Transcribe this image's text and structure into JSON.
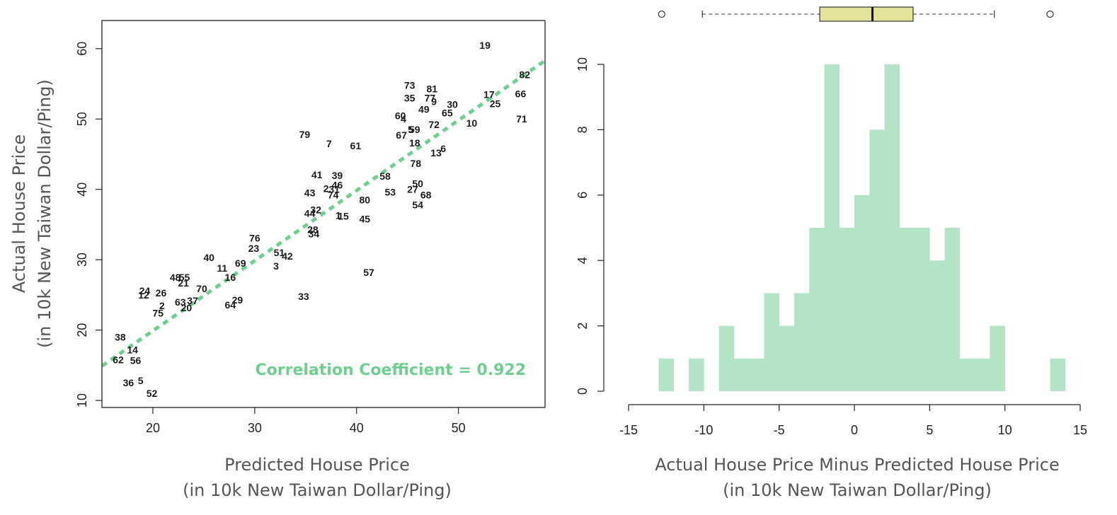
{
  "colors": {
    "fit_line": "#6fcf8f",
    "annotation": "#6fcf8f",
    "hist_fill": "#b3e4c6",
    "box_fill": "#e3e39a"
  },
  "chart_data": [
    {
      "type": "scatter",
      "title": "",
      "xlabel": [
        "Predicted House Price",
        "(in 10k New Taiwan Dollar/Ping)"
      ],
      "ylabel": [
        "Actual House Price",
        "(in 10k New Taiwan Dollar/Ping)"
      ],
      "xlim": [
        15,
        58.5
      ],
      "ylim": [
        9,
        64
      ],
      "x_ticks": [
        20,
        30,
        40,
        50
      ],
      "y_ticks": [
        10,
        20,
        30,
        40,
        50,
        60
      ],
      "grid": false,
      "fit_line": {
        "style": "dashed",
        "points": [
          [
            15,
            14.9
          ],
          [
            58.5,
            58.3
          ]
        ]
      },
      "annotation": "Correlation Coefficient = 0.922",
      "points": [
        {
          "label": "19",
          "x": 52.6,
          "y": 60.5
        },
        {
          "label": "82",
          "x": 56.5,
          "y": 56.3
        },
        {
          "label": "73",
          "x": 45.2,
          "y": 54.8
        },
        {
          "label": "81",
          "x": 47.4,
          "y": 54.3
        },
        {
          "label": "17",
          "x": 53.0,
          "y": 53.5
        },
        {
          "label": "66",
          "x": 56.1,
          "y": 53.6
        },
        {
          "label": "35",
          "x": 45.2,
          "y": 53.0
        },
        {
          "label": "77",
          "x": 47.2,
          "y": 53.0
        },
        {
          "label": "9",
          "x": 47.6,
          "y": 52.5
        },
        {
          "label": "30",
          "x": 49.4,
          "y": 52.1
        },
        {
          "label": "25",
          "x": 53.6,
          "y": 52.2
        },
        {
          "label": "49",
          "x": 46.6,
          "y": 51.4
        },
        {
          "label": "65",
          "x": 48.9,
          "y": 50.9
        },
        {
          "label": "60",
          "x": 44.3,
          "y": 50.5
        },
        {
          "label": "4",
          "x": 44.6,
          "y": 50.0
        },
        {
          "label": "71",
          "x": 56.2,
          "y": 50.0
        },
        {
          "label": "10",
          "x": 51.3,
          "y": 49.4
        },
        {
          "label": "72",
          "x": 47.6,
          "y": 49.2
        },
        {
          "label": "5",
          "x": 45.3,
          "y": 48.5
        },
        {
          "label": "59",
          "x": 45.7,
          "y": 48.5
        },
        {
          "label": "67",
          "x": 44.4,
          "y": 47.7
        },
        {
          "label": "79",
          "x": 34.9,
          "y": 47.8
        },
        {
          "label": "7",
          "x": 37.3,
          "y": 46.5
        },
        {
          "label": "61",
          "x": 39.9,
          "y": 46.2
        },
        {
          "label": "18",
          "x": 45.7,
          "y": 46.6
        },
        {
          "label": "6",
          "x": 48.5,
          "y": 45.8
        },
        {
          "label": "13",
          "x": 47.8,
          "y": 45.2
        },
        {
          "label": "78",
          "x": 45.8,
          "y": 43.7
        },
        {
          "label": "41",
          "x": 36.1,
          "y": 42.1
        },
        {
          "label": "39",
          "x": 38.1,
          "y": 42.0
        },
        {
          "label": "58",
          "x": 42.8,
          "y": 41.9
        },
        {
          "label": "46",
          "x": 38.1,
          "y": 40.6
        },
        {
          "label": "50",
          "x": 46.0,
          "y": 40.8
        },
        {
          "label": "2",
          "x": 37.0,
          "y": 40.1
        },
        {
          "label": "31",
          "x": 37.8,
          "y": 40.0
        },
        {
          "label": "43",
          "x": 35.4,
          "y": 39.5
        },
        {
          "label": "74",
          "x": 37.7,
          "y": 39.2
        },
        {
          "label": "53",
          "x": 43.3,
          "y": 39.6
        },
        {
          "label": "27",
          "x": 45.5,
          "y": 40.0
        },
        {
          "label": "68",
          "x": 46.8,
          "y": 39.2
        },
        {
          "label": "80",
          "x": 40.8,
          "y": 38.5
        },
        {
          "label": "54",
          "x": 46.0,
          "y": 37.8
        },
        {
          "label": "44",
          "x": 35.4,
          "y": 36.6
        },
        {
          "label": "32",
          "x": 36.0,
          "y": 37.1
        },
        {
          "label": "1",
          "x": 38.2,
          "y": 36.3
        },
        {
          "label": "15",
          "x": 38.7,
          "y": 36.2
        },
        {
          "label": "45",
          "x": 40.8,
          "y": 35.8
        },
        {
          "label": "28",
          "x": 35.7,
          "y": 34.3
        },
        {
          "label": "34",
          "x": 35.8,
          "y": 33.7
        },
        {
          "label": "76",
          "x": 30.0,
          "y": 33.1
        },
        {
          "label": "23",
          "x": 29.9,
          "y": 31.6
        },
        {
          "label": "51",
          "x": 32.4,
          "y": 31.0
        },
        {
          "label": "42",
          "x": 33.2,
          "y": 30.5
        },
        {
          "label": "40",
          "x": 25.5,
          "y": 30.3
        },
        {
          "label": "69",
          "x": 28.6,
          "y": 29.5
        },
        {
          "label": "3",
          "x": 32.1,
          "y": 29.1
        },
        {
          "label": "11",
          "x": 26.8,
          "y": 28.8
        },
        {
          "label": "57",
          "x": 41.2,
          "y": 28.2
        },
        {
          "label": "16",
          "x": 27.6,
          "y": 27.5
        },
        {
          "label": "48",
          "x": 22.2,
          "y": 27.5
        },
        {
          "label": "55",
          "x": 23.1,
          "y": 27.5
        },
        {
          "label": "21",
          "x": 23.0,
          "y": 26.7
        },
        {
          "label": "70",
          "x": 24.8,
          "y": 25.9
        },
        {
          "label": "24",
          "x": 19.2,
          "y": 25.6
        },
        {
          "label": "26",
          "x": 20.8,
          "y": 25.3
        },
        {
          "label": "12",
          "x": 19.1,
          "y": 25.0
        },
        {
          "label": "29",
          "x": 28.3,
          "y": 24.3
        },
        {
          "label": "37",
          "x": 23.9,
          "y": 24.2
        },
        {
          "label": "63",
          "x": 22.7,
          "y": 24.0
        },
        {
          "label": "33",
          "x": 34.8,
          "y": 24.8
        },
        {
          "label": "2",
          "x": 20.9,
          "y": 23.5
        },
        {
          "label": "20",
          "x": 23.3,
          "y": 23.2
        },
        {
          "label": "64",
          "x": 27.6,
          "y": 23.6
        },
        {
          "label": "75",
          "x": 20.5,
          "y": 22.4
        },
        {
          "label": "38",
          "x": 16.8,
          "y": 19.0
        },
        {
          "label": "14",
          "x": 18.0,
          "y": 17.2
        },
        {
          "label": "62",
          "x": 16.6,
          "y": 15.8
        },
        {
          "label": "56",
          "x": 18.3,
          "y": 15.7
        },
        {
          "label": "36",
          "x": 17.6,
          "y": 12.5
        },
        {
          "label": "5",
          "x": 18.8,
          "y": 12.8
        },
        {
          "label": "52",
          "x": 19.9,
          "y": 11.0
        }
      ]
    },
    {
      "type": "histogram",
      "title": "",
      "xlabel": [
        "Actual House Price Minus Predicted House Price",
        "(in 10k New Taiwan Dollar/Ping)"
      ],
      "ylabel": "",
      "xlim": [
        -15,
        15
      ],
      "ylim": [
        0,
        10
      ],
      "x_ticks": [
        -15,
        -10,
        -5,
        0,
        5,
        10,
        15
      ],
      "y_ticks": [
        0,
        2,
        4,
        6,
        8,
        10
      ],
      "bin_width": 1,
      "bins_start": [
        -13,
        -12,
        -11,
        -10,
        -9,
        -8,
        -7,
        -6,
        -5,
        -4,
        -3,
        -2,
        -1,
        0,
        1,
        2,
        3,
        4,
        5,
        6,
        7,
        8,
        9,
        10,
        11,
        12,
        13
      ],
      "counts": [
        1,
        0,
        1,
        0,
        2,
        1,
        1,
        3,
        2,
        3,
        5,
        10,
        5,
        6,
        8,
        10,
        5,
        5,
        4,
        5,
        1,
        1,
        2,
        0,
        0,
        0,
        1
      ],
      "boxplot": {
        "whisker_low": -10.1,
        "q1": -2.3,
        "median": 1.2,
        "q3": 3.9,
        "whisker_high": 9.3,
        "outliers": [
          -12.8,
          13.0
        ]
      }
    }
  ]
}
